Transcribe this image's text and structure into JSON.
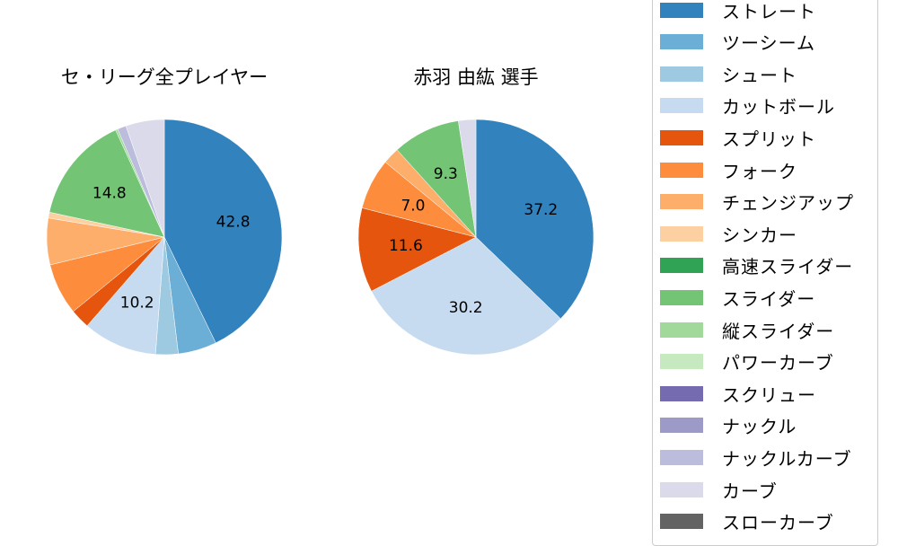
{
  "chart_data": [
    {
      "type": "pie",
      "title": "セ・リーグ全プレイヤー",
      "start_angle": 90,
      "direction": "clockwise",
      "slices": [
        {
          "label": "ストレート",
          "value": 42.8,
          "color": "#3182bd",
          "shown": "42.8"
        },
        {
          "label": "ツーシーム",
          "value": 5.3,
          "color": "#6baed6",
          "shown": ""
        },
        {
          "label": "シュート",
          "value": 3.1,
          "color": "#9ecae1",
          "shown": ""
        },
        {
          "label": "カットボール",
          "value": 10.2,
          "color": "#c6dbef",
          "shown": "10.2"
        },
        {
          "label": "スプリット",
          "value": 2.7,
          "color": "#e6550d",
          "shown": ""
        },
        {
          "label": "フォーク",
          "value": 7.1,
          "color": "#fd8d3c",
          "shown": ""
        },
        {
          "label": "チェンジアップ",
          "value": 6.4,
          "color": "#fdae6b",
          "shown": ""
        },
        {
          "label": "シンカー",
          "value": 0.8,
          "color": "#fdd0a2",
          "shown": ""
        },
        {
          "label": "スライダー",
          "value": 14.8,
          "color": "#74c476",
          "shown": "14.8"
        },
        {
          "label": "縦スライダー",
          "value": 0.3,
          "color": "#a1d99b",
          "shown": ""
        },
        {
          "label": "ナックルカーブ",
          "value": 1.2,
          "color": "#bcbddc",
          "shown": ""
        },
        {
          "label": "カーブ",
          "value": 5.3,
          "color": "#dadaeb",
          "shown": ""
        }
      ]
    },
    {
      "type": "pie",
      "title": "赤羽 由紘  選手",
      "start_angle": 90,
      "direction": "clockwise",
      "slices": [
        {
          "label": "ストレート",
          "value": 37.2,
          "color": "#3182bd",
          "shown": "37.2"
        },
        {
          "label": "カットボール",
          "value": 30.2,
          "color": "#c6dbef",
          "shown": "30.2"
        },
        {
          "label": "スプリット",
          "value": 11.6,
          "color": "#e6550d",
          "shown": "11.6"
        },
        {
          "label": "フォーク",
          "value": 7.0,
          "color": "#fd8d3c",
          "shown": "7.0"
        },
        {
          "label": "チェンジアップ",
          "value": 2.3,
          "color": "#fdae6b",
          "shown": ""
        },
        {
          "label": "スライダー",
          "value": 9.3,
          "color": "#74c476",
          "shown": "9.3"
        },
        {
          "label": "カーブ",
          "value": 2.4,
          "color": "#dadaeb",
          "shown": ""
        }
      ]
    }
  ],
  "titles": {
    "left": "セ・リーグ全プレイヤー",
    "right": "赤羽 由紘  選手"
  },
  "legend": [
    {
      "label": "ストレート",
      "color": "#3182bd"
    },
    {
      "label": "ツーシーム",
      "color": "#6baed6"
    },
    {
      "label": "シュート",
      "color": "#9ecae1"
    },
    {
      "label": "カットボール",
      "color": "#c6dbef"
    },
    {
      "label": "スプリット",
      "color": "#e6550d"
    },
    {
      "label": "フォーク",
      "color": "#fd8d3c"
    },
    {
      "label": "チェンジアップ",
      "color": "#fdae6b"
    },
    {
      "label": "シンカー",
      "color": "#fdd0a2"
    },
    {
      "label": "高速スライダー",
      "color": "#31a354"
    },
    {
      "label": "スライダー",
      "color": "#74c476"
    },
    {
      "label": "縦スライダー",
      "color": "#a1d99b"
    },
    {
      "label": "パワーカーブ",
      "color": "#c7e9c0"
    },
    {
      "label": "スクリュー",
      "color": "#756bb1"
    },
    {
      "label": "ナックル",
      "color": "#9e9ac8"
    },
    {
      "label": "ナックルカーブ",
      "color": "#bcbddc"
    },
    {
      "label": "カーブ",
      "color": "#dadaeb"
    },
    {
      "label": "スローカーブ",
      "color": "#636363"
    }
  ]
}
